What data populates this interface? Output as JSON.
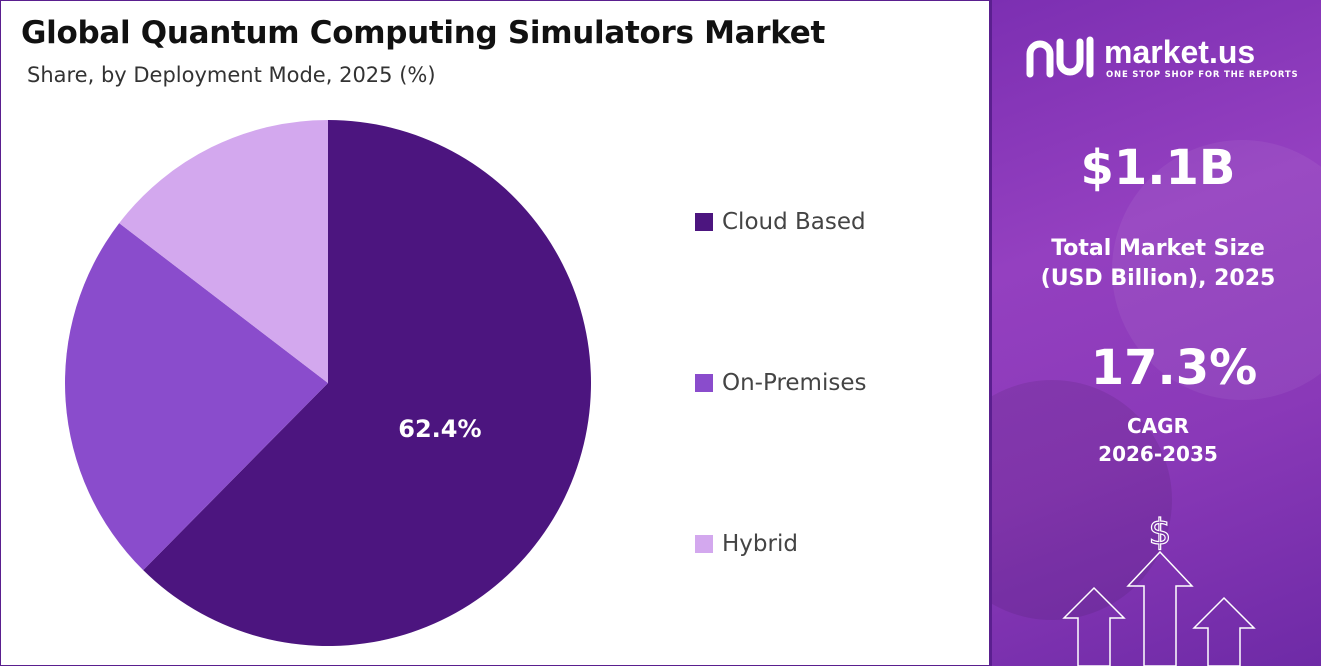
{
  "chart_data": {
    "type": "pie",
    "title": "Global Quantum Computing Simulators Market",
    "subtitle": "Share, by Deployment Mode, 2025 (%)",
    "categories": [
      "Cloud Based",
      "On-Premises",
      "Hybrid"
    ],
    "values": [
      62.4,
      23.0,
      14.6
    ],
    "data_labels": [
      "62.4%",
      "",
      ""
    ],
    "colors": [
      "#4c157f",
      "#8a4ccc",
      "#d3a8ee"
    ],
    "start_angle_deg": 0,
    "direction": "clockwise",
    "legend_placement": "right"
  },
  "panel": {
    "logo_name": "market.us",
    "logo_tagline": "ONE STOP SHOP FOR THE REPORTS",
    "market_size_value": "$1.1B",
    "market_size_label_line1": "Total Market Size",
    "market_size_label_line2": "(USD Billion), 2025",
    "cagr_value": "17.3%",
    "cagr_label_line1": "CAGR",
    "cagr_label_line2": "2026-2035",
    "dollar_symbol": "$",
    "accent_color": "#8a39b8"
  }
}
